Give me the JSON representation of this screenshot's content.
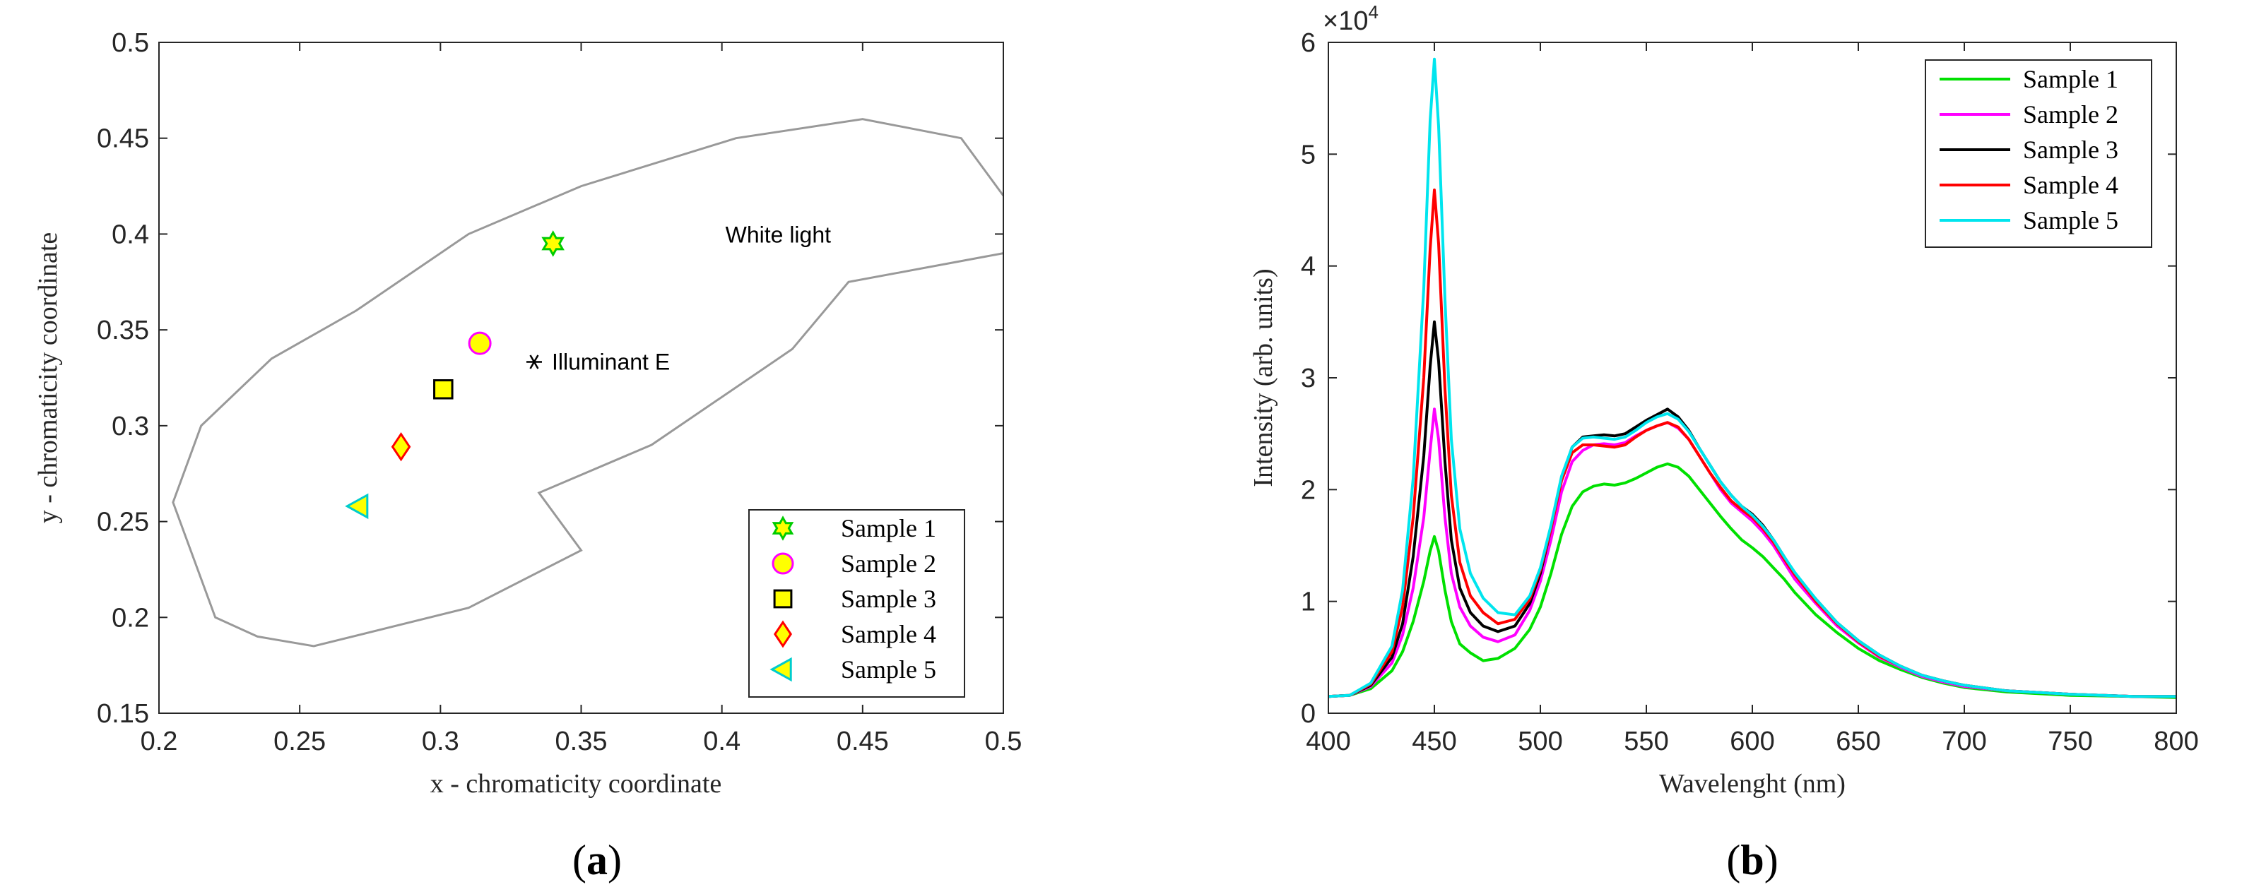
{
  "chart_data": [
    {
      "type": "scatter",
      "panel_label_open": "(",
      "panel_label_letter": "a",
      "panel_label_close": ")",
      "title": "",
      "xlabel": "x - chromaticity coordinate",
      "ylabel": "y - chromaticity coordinate",
      "xlim": [
        0.2,
        0.5
      ],
      "ylim": [
        0.15,
        0.5
      ],
      "xticks": [
        0.2,
        0.25,
        0.3,
        0.35,
        0.4,
        0.45,
        0.5
      ],
      "xtick_labels": [
        "0.2",
        "0.25",
        "0.3",
        "0.35",
        "0.4",
        "0.45",
        "0.5"
      ],
      "yticks": [
        0.15,
        0.2,
        0.25,
        0.3,
        0.35,
        0.4,
        0.45,
        0.5
      ],
      "ytick_labels": [
        "0.15",
        "0.2",
        "0.25",
        "0.3",
        "0.35",
        "0.4",
        "0.45",
        "0.5"
      ],
      "white_region": {
        "label": "White light",
        "label_x": 0.42,
        "label_y": 0.4,
        "color": "#999999",
        "upper": [
          [
            0.5,
            0.42
          ],
          [
            0.485,
            0.45
          ],
          [
            0.45,
            0.46
          ],
          [
            0.405,
            0.45
          ],
          [
            0.35,
            0.425
          ],
          [
            0.31,
            0.4
          ],
          [
            0.27,
            0.36
          ],
          [
            0.24,
            0.335
          ],
          [
            0.215,
            0.3
          ],
          [
            0.205,
            0.26
          ],
          [
            0.22,
            0.2
          ],
          [
            0.235,
            0.19
          ],
          [
            0.255,
            0.185
          ],
          [
            0.31,
            0.205
          ],
          [
            0.35,
            0.235
          ],
          [
            0.335,
            0.265
          ],
          [
            0.375,
            0.29
          ],
          [
            0.425,
            0.34
          ],
          [
            0.445,
            0.375
          ],
          [
            0.5,
            0.39
          ]
        ]
      },
      "illuminant": {
        "label": "Illuminant E",
        "x": 0.3333,
        "y": 0.3333
      },
      "series": [
        {
          "name": "Sample 1",
          "x": 0.34,
          "y": 0.395,
          "marker": "hexagram",
          "fill": "#ffff00",
          "edge": "#00cc00"
        },
        {
          "name": "Sample 2",
          "x": 0.314,
          "y": 0.343,
          "marker": "circle",
          "fill": "#ffff00",
          "edge": "#ff00ff"
        },
        {
          "name": "Sample 3",
          "x": 0.301,
          "y": 0.319,
          "marker": "square",
          "fill": "#ffff00",
          "edge": "#000000"
        },
        {
          "name": "Sample 4",
          "x": 0.286,
          "y": 0.289,
          "marker": "diamond",
          "fill": "#ffff00",
          "edge": "#ff0000"
        },
        {
          "name": "Sample 5",
          "x": 0.271,
          "y": 0.258,
          "marker": "triangle-left",
          "fill": "#ffff00",
          "edge": "#00cccc"
        }
      ],
      "legend_position": "bottom-right",
      "grid": false
    },
    {
      "type": "line",
      "panel_label_open": "(",
      "panel_label_letter": "b",
      "panel_label_close": ")",
      "title": "",
      "xlabel": "Wavelenght (nm)",
      "ylabel": "Intensity (arb. units)",
      "exponent_base": "×10",
      "exponent_power": "4",
      "xlim": [
        400,
        800
      ],
      "ylim": [
        0,
        6
      ],
      "xticks": [
        400,
        450,
        500,
        550,
        600,
        650,
        700,
        750,
        800
      ],
      "xtick_labels": [
        "400",
        "450",
        "500",
        "550",
        "600",
        "650",
        "700",
        "750",
        "800"
      ],
      "yticks": [
        0,
        1,
        2,
        3,
        4,
        5,
        6
      ],
      "ytick_labels": [
        "0",
        "1",
        "2",
        "3",
        "4",
        "5",
        "6"
      ],
      "x": [
        400,
        410,
        420,
        430,
        435,
        440,
        445,
        448,
        450,
        452,
        455,
        458,
        462,
        467,
        473,
        480,
        488,
        495,
        500,
        505,
        510,
        515,
        520,
        525,
        530,
        535,
        540,
        545,
        550,
        555,
        560,
        565,
        570,
        575,
        580,
        585,
        590,
        595,
        600,
        605,
        610,
        615,
        620,
        630,
        640,
        650,
        660,
        670,
        680,
        690,
        700,
        720,
        750,
        780,
        800
      ],
      "series": [
        {
          "name": "Sample 1",
          "color": "#00e000",
          "values": [
            0.15,
            0.16,
            0.22,
            0.38,
            0.55,
            0.82,
            1.18,
            1.45,
            1.58,
            1.45,
            1.1,
            0.82,
            0.62,
            0.54,
            0.47,
            0.49,
            0.58,
            0.75,
            0.95,
            1.25,
            1.6,
            1.85,
            1.98,
            2.03,
            2.05,
            2.04,
            2.06,
            2.1,
            2.15,
            2.2,
            2.23,
            2.2,
            2.12,
            2.0,
            1.88,
            1.76,
            1.65,
            1.55,
            1.48,
            1.4,
            1.3,
            1.2,
            1.08,
            0.88,
            0.72,
            0.58,
            0.47,
            0.39,
            0.32,
            0.27,
            0.23,
            0.19,
            0.16,
            0.15,
            0.14
          ]
        },
        {
          "name": "Sample 2",
          "color": "#ff00ff",
          "values": [
            0.15,
            0.16,
            0.24,
            0.45,
            0.7,
            1.12,
            1.75,
            2.35,
            2.72,
            2.45,
            1.75,
            1.25,
            0.95,
            0.78,
            0.68,
            0.64,
            0.7,
            0.92,
            1.18,
            1.55,
            1.98,
            2.25,
            2.35,
            2.4,
            2.41,
            2.4,
            2.42,
            2.48,
            2.53,
            2.57,
            2.6,
            2.55,
            2.45,
            2.3,
            2.15,
            2.0,
            1.88,
            1.8,
            1.72,
            1.62,
            1.5,
            1.35,
            1.2,
            0.98,
            0.78,
            0.63,
            0.5,
            0.41,
            0.33,
            0.28,
            0.24,
            0.2,
            0.17,
            0.15,
            0.15
          ]
        },
        {
          "name": "Sample 3",
          "color": "#000000",
          "values": [
            0.15,
            0.16,
            0.25,
            0.5,
            0.8,
            1.4,
            2.3,
            3.1,
            3.5,
            3.15,
            2.25,
            1.55,
            1.12,
            0.9,
            0.78,
            0.73,
            0.78,
            0.98,
            1.25,
            1.65,
            2.1,
            2.38,
            2.47,
            2.48,
            2.49,
            2.48,
            2.5,
            2.56,
            2.62,
            2.67,
            2.72,
            2.65,
            2.53,
            2.37,
            2.22,
            2.07,
            1.95,
            1.85,
            1.78,
            1.68,
            1.55,
            1.4,
            1.25,
            1.02,
            0.81,
            0.65,
            0.52,
            0.42,
            0.34,
            0.29,
            0.25,
            0.2,
            0.17,
            0.15,
            0.15
          ]
        },
        {
          "name": "Sample 4",
          "color": "#ff0000",
          "values": [
            0.15,
            0.16,
            0.26,
            0.55,
            0.95,
            1.75,
            3.0,
            4.15,
            4.68,
            4.2,
            2.9,
            1.95,
            1.35,
            1.05,
            0.9,
            0.8,
            0.84,
            1.02,
            1.28,
            1.65,
            2.08,
            2.33,
            2.4,
            2.4,
            2.39,
            2.38,
            2.4,
            2.47,
            2.53,
            2.57,
            2.6,
            2.56,
            2.45,
            2.3,
            2.15,
            2.02,
            1.9,
            1.82,
            1.75,
            1.65,
            1.53,
            1.38,
            1.24,
            1.0,
            0.8,
            0.64,
            0.51,
            0.42,
            0.34,
            0.29,
            0.25,
            0.2,
            0.17,
            0.15,
            0.15
          ]
        },
        {
          "name": "Sample 5",
          "color": "#00e5ee",
          "values": [
            0.15,
            0.16,
            0.27,
            0.6,
            1.1,
            2.1,
            3.8,
            5.3,
            5.85,
            5.25,
            3.7,
            2.45,
            1.65,
            1.25,
            1.03,
            0.9,
            0.88,
            1.05,
            1.3,
            1.68,
            2.12,
            2.38,
            2.46,
            2.47,
            2.46,
            2.45,
            2.47,
            2.53,
            2.6,
            2.65,
            2.68,
            2.63,
            2.52,
            2.37,
            2.22,
            2.07,
            1.95,
            1.85,
            1.77,
            1.67,
            1.55,
            1.4,
            1.26,
            1.02,
            0.81,
            0.65,
            0.52,
            0.42,
            0.34,
            0.29,
            0.25,
            0.2,
            0.17,
            0.15,
            0.15
          ]
        }
      ],
      "legend_position": "top-right",
      "grid": false
    }
  ]
}
